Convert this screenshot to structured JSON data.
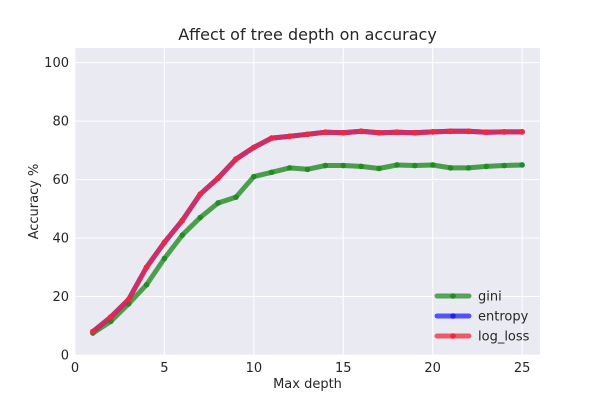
{
  "chart_data": {
    "type": "line",
    "title": "Affect of tree depth on accuracy",
    "xlabel": "Max depth",
    "ylabel": "Accuracy %",
    "xlim": [
      0,
      26
    ],
    "ylim": [
      0,
      105
    ],
    "xticks": [
      0,
      5,
      10,
      15,
      20,
      25
    ],
    "yticks": [
      0,
      20,
      40,
      60,
      80,
      100
    ],
    "grid": true,
    "legend_position": "lower-right",
    "x": [
      1,
      2,
      3,
      4,
      5,
      6,
      7,
      8,
      9,
      10,
      11,
      12,
      13,
      14,
      15,
      16,
      17,
      18,
      19,
      20,
      21,
      22,
      23,
      24,
      25
    ],
    "series": [
      {
        "name": "gini",
        "color": "#228B22",
        "values": [
          7.5,
          11.5,
          17.5,
          24,
          33,
          41,
          47,
          52,
          54,
          61,
          62.5,
          64,
          63.5,
          64.8,
          64.8,
          64.5,
          63.8,
          65,
          64.8,
          65,
          64,
          64,
          64.5,
          64.8,
          65
        ]
      },
      {
        "name": "entropy",
        "color": "#2020FF",
        "values": [
          8,
          13,
          19,
          30,
          38.5,
          46,
          55,
          60.5,
          67,
          71,
          74.2,
          74.8,
          75.5,
          76.2,
          76,
          76.5,
          76,
          76.2,
          76,
          76.3,
          76.5,
          76.5,
          76.2,
          76.3,
          76.3
        ]
      },
      {
        "name": "log_loss",
        "color": "#F0283C",
        "values": [
          8,
          13,
          19,
          30,
          38.5,
          46,
          55,
          60.5,
          67,
          71,
          74.2,
          74.8,
          75.5,
          76.2,
          76,
          76.5,
          76,
          76.2,
          76,
          76.3,
          76.5,
          76.5,
          76.2,
          76.3,
          76.3
        ]
      }
    ]
  }
}
